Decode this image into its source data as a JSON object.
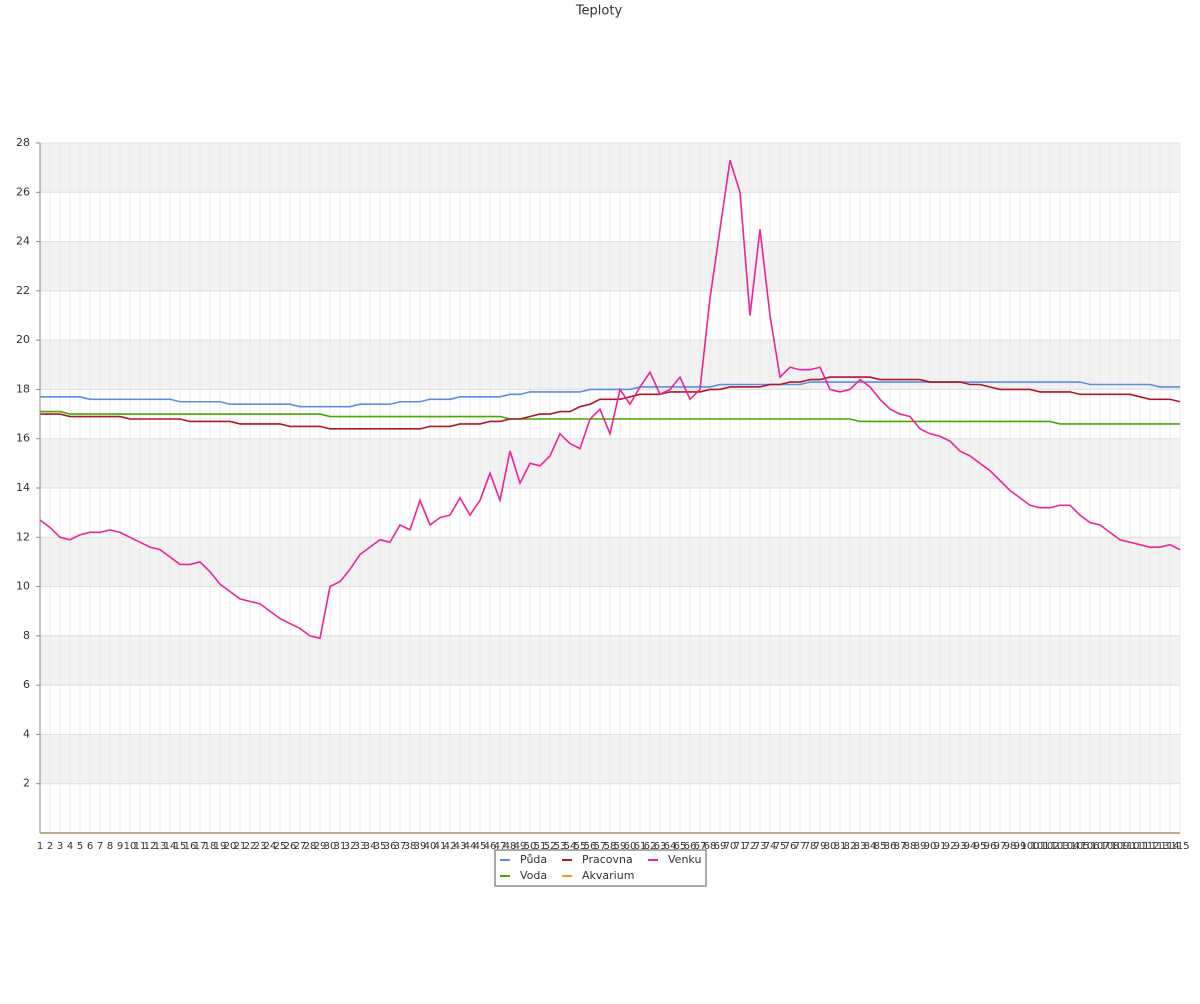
{
  "chart_data": {
    "type": "line",
    "title": "Teploty",
    "categories": [
      "1",
      "2",
      "3",
      "4",
      "5",
      "6",
      "7",
      "8",
      "9",
      "10",
      "11",
      "12",
      "13",
      "14",
      "15",
      "16",
      "17",
      "18",
      "19",
      "20",
      "21",
      "22",
      "23",
      "24",
      "25",
      "26",
      "27",
      "28",
      "29",
      "30",
      "31",
      "32",
      "33",
      "34",
      "35",
      "36",
      "37",
      "38",
      "39",
      "40",
      "41",
      "42",
      "43",
      "44",
      "45",
      "46",
      "47",
      "48",
      "49",
      "50",
      "51",
      "52",
      "53",
      "54",
      "55",
      "56",
      "57",
      "58",
      "59",
      "60",
      "61",
      "62",
      "63",
      "64",
      "65",
      "66",
      "67",
      "68",
      "69",
      "70",
      "71",
      "72",
      "73",
      "74",
      "75",
      "76",
      "77",
      "78",
      "79",
      "80",
      "81",
      "82",
      "83",
      "84",
      "85",
      "86",
      "87",
      "88",
      "89",
      "90",
      "91",
      "92",
      "93",
      "94",
      "95",
      "96",
      "97",
      "98",
      "99",
      "100",
      "101",
      "102",
      "103",
      "104",
      "105",
      "106",
      "107",
      "108",
      "109",
      "110",
      "111",
      "112",
      "113",
      "114",
      "115"
    ],
    "ylim": [
      0,
      28
    ],
    "yticks": [
      2,
      4,
      6,
      8,
      10,
      12,
      14,
      16,
      18,
      20,
      22,
      24,
      26,
      28
    ],
    "grid": true,
    "series": [
      {
        "name": "Půda",
        "color": "#5b8ee6",
        "values": [
          17.7,
          17.7,
          17.7,
          17.7,
          17.7,
          17.6,
          17.6,
          17.6,
          17.6,
          17.6,
          17.6,
          17.6,
          17.6,
          17.6,
          17.5,
          17.5,
          17.5,
          17.5,
          17.5,
          17.4,
          17.4,
          17.4,
          17.4,
          17.4,
          17.4,
          17.4,
          17.3,
          17.3,
          17.3,
          17.3,
          17.3,
          17.3,
          17.4,
          17.4,
          17.4,
          17.4,
          17.5,
          17.5,
          17.5,
          17.6,
          17.6,
          17.6,
          17.7,
          17.7,
          17.7,
          17.7,
          17.7,
          17.8,
          17.8,
          17.9,
          17.9,
          17.9,
          17.9,
          17.9,
          17.9,
          18.0,
          18.0,
          18.0,
          18.0,
          18.0,
          18.1,
          18.1,
          18.1,
          18.1,
          18.1,
          18.1,
          18.1,
          18.1,
          18.2,
          18.2,
          18.2,
          18.2,
          18.2,
          18.2,
          18.2,
          18.2,
          18.2,
          18.3,
          18.3,
          18.3,
          18.3,
          18.3,
          18.3,
          18.3,
          18.3,
          18.3,
          18.3,
          18.3,
          18.3,
          18.3,
          18.3,
          18.3,
          18.3,
          18.3,
          18.3,
          18.3,
          18.3,
          18.3,
          18.3,
          18.3,
          18.3,
          18.3,
          18.3,
          18.3,
          18.3,
          18.2,
          18.2,
          18.2,
          18.2,
          18.2,
          18.2,
          18.2,
          18.1,
          18.1,
          18.1
        ]
      },
      {
        "name": "Voda",
        "color": "#44aa00",
        "values": [
          17.1,
          17.1,
          17.1,
          17.0,
          17.0,
          17.0,
          17.0,
          17.0,
          17.0,
          17.0,
          17.0,
          17.0,
          17.0,
          17.0,
          17.0,
          17.0,
          17.0,
          17.0,
          17.0,
          17.0,
          17.0,
          17.0,
          17.0,
          17.0,
          17.0,
          17.0,
          17.0,
          17.0,
          17.0,
          16.9,
          16.9,
          16.9,
          16.9,
          16.9,
          16.9,
          16.9,
          16.9,
          16.9,
          16.9,
          16.9,
          16.9,
          16.9,
          16.9,
          16.9,
          16.9,
          16.9,
          16.9,
          16.8,
          16.8,
          16.8,
          16.8,
          16.8,
          16.8,
          16.8,
          16.8,
          16.8,
          16.8,
          16.8,
          16.8,
          16.8,
          16.8,
          16.8,
          16.8,
          16.8,
          16.8,
          16.8,
          16.8,
          16.8,
          16.8,
          16.8,
          16.8,
          16.8,
          16.8,
          16.8,
          16.8,
          16.8,
          16.8,
          16.8,
          16.8,
          16.8,
          16.8,
          16.8,
          16.7,
          16.7,
          16.7,
          16.7,
          16.7,
          16.7,
          16.7,
          16.7,
          16.7,
          16.7,
          16.7,
          16.7,
          16.7,
          16.7,
          16.7,
          16.7,
          16.7,
          16.7,
          16.7,
          16.7,
          16.6,
          16.6,
          16.6,
          16.6,
          16.6,
          16.6,
          16.6,
          16.6,
          16.6,
          16.6,
          16.6,
          16.6,
          16.6
        ]
      },
      {
        "name": "Pracovna",
        "color": "#b0172a",
        "values": [
          17.0,
          17.0,
          17.0,
          16.9,
          16.9,
          16.9,
          16.9,
          16.9,
          16.9,
          16.8,
          16.8,
          16.8,
          16.8,
          16.8,
          16.8,
          16.7,
          16.7,
          16.7,
          16.7,
          16.7,
          16.6,
          16.6,
          16.6,
          16.6,
          16.6,
          16.5,
          16.5,
          16.5,
          16.5,
          16.4,
          16.4,
          16.4,
          16.4,
          16.4,
          16.4,
          16.4,
          16.4,
          16.4,
          16.4,
          16.5,
          16.5,
          16.5,
          16.6,
          16.6,
          16.6,
          16.7,
          16.7,
          16.8,
          16.8,
          16.9,
          17.0,
          17.0,
          17.1,
          17.1,
          17.3,
          17.4,
          17.6,
          17.6,
          17.6,
          17.7,
          17.8,
          17.8,
          17.8,
          17.9,
          17.9,
          17.9,
          17.9,
          18.0,
          18.0,
          18.1,
          18.1,
          18.1,
          18.1,
          18.2,
          18.2,
          18.3,
          18.3,
          18.4,
          18.4,
          18.5,
          18.5,
          18.5,
          18.5,
          18.5,
          18.4,
          18.4,
          18.4,
          18.4,
          18.4,
          18.3,
          18.3,
          18.3,
          18.3,
          18.2,
          18.2,
          18.1,
          18.0,
          18.0,
          18.0,
          18.0,
          17.9,
          17.9,
          17.9,
          17.9,
          17.8,
          17.8,
          17.8,
          17.8,
          17.8,
          17.8,
          17.7,
          17.6,
          17.6,
          17.6,
          17.5
        ]
      },
      {
        "name": "Akvarium",
        "color": "#f0a020",
        "values": [
          0,
          0,
          0,
          0,
          0,
          0,
          0,
          0,
          0,
          0,
          0,
          0,
          0,
          0,
          0,
          0,
          0,
          0,
          0,
          0,
          0,
          0,
          0,
          0,
          0,
          0,
          0,
          0,
          0,
          0,
          0,
          0,
          0,
          0,
          0,
          0,
          0,
          0,
          0,
          0,
          0,
          0,
          0,
          0,
          0,
          0,
          0,
          0,
          0,
          0,
          0,
          0,
          0,
          0,
          0,
          0,
          0,
          0,
          0,
          0,
          0,
          0,
          0,
          0,
          0,
          0,
          0,
          0,
          0,
          0,
          0,
          0,
          0,
          0,
          0,
          0,
          0,
          0,
          0,
          0,
          0,
          0,
          0,
          0,
          0,
          0,
          0,
          0,
          0,
          0,
          0,
          0,
          0,
          0,
          0,
          0,
          0,
          0,
          0,
          0,
          0,
          0,
          0,
          0,
          0,
          0,
          0,
          0,
          0,
          0,
          0,
          0,
          0,
          0,
          0
        ]
      },
      {
        "name": "Venku",
        "color": "#ee2299",
        "values": [
          12.7,
          12.4,
          12.0,
          11.9,
          12.1,
          12.2,
          12.2,
          12.3,
          12.2,
          12.0,
          11.8,
          11.6,
          11.5,
          11.2,
          10.9,
          10.9,
          11.0,
          10.6,
          10.1,
          9.8,
          9.5,
          9.4,
          9.3,
          9.0,
          8.7,
          8.5,
          8.3,
          8.0,
          7.9,
          10.0,
          10.2,
          10.7,
          11.3,
          11.6,
          11.9,
          11.8,
          12.5,
          12.3,
          13.5,
          12.5,
          12.8,
          12.9,
          13.6,
          12.9,
          13.5,
          14.6,
          13.5,
          15.5,
          14.2,
          15.0,
          14.9,
          15.3,
          16.2,
          15.8,
          15.6,
          16.8,
          17.2,
          16.2,
          18.0,
          17.4,
          18.1,
          18.7,
          17.8,
          18.0,
          18.5,
          17.6,
          18.0,
          21.7,
          24.5,
          27.3,
          26.0,
          21.0,
          24.5,
          21.0,
          18.5,
          18.9,
          18.8,
          18.8,
          18.9,
          18.0,
          17.9,
          18.0,
          18.4,
          18.1,
          17.6,
          17.2,
          17.0,
          16.9,
          16.4,
          16.2,
          16.1,
          15.9,
          15.5,
          15.3,
          15.0,
          14.7,
          14.3,
          13.9,
          13.6,
          13.3,
          13.2,
          13.2,
          13.3,
          13.3,
          12.9,
          12.6,
          12.5,
          12.2,
          11.9,
          11.8,
          11.7,
          11.6,
          11.6,
          11.7,
          11.5
        ]
      }
    ]
  }
}
